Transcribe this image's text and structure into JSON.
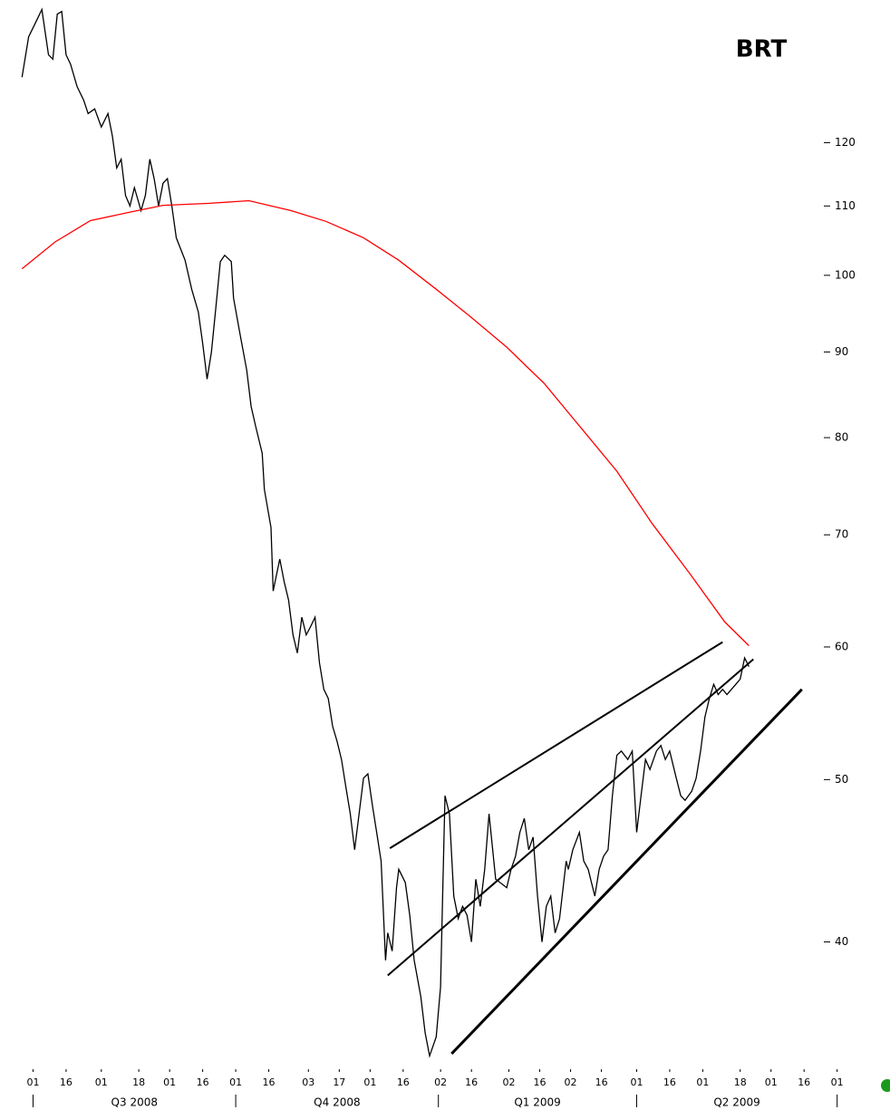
{
  "chart_data": {
    "type": "line",
    "title": "BRT",
    "log_scale": true,
    "ylim": [
      34,
      146
    ],
    "yticks": [
      40,
      50,
      60,
      70,
      80,
      90,
      100,
      110,
      120
    ],
    "xlim": [
      "2008-06-16",
      "2009-07-25"
    ],
    "xticks": [
      {
        "value": "2008-07-01",
        "label": "01"
      },
      {
        "value": "2008-07-16",
        "label": "16"
      },
      {
        "value": "2008-08-01",
        "label": "01"
      },
      {
        "value": "2008-08-18",
        "label": "18"
      },
      {
        "value": "2008-09-01",
        "label": "01"
      },
      {
        "value": "2008-09-16",
        "label": "16"
      },
      {
        "value": "2008-10-01",
        "label": "01"
      },
      {
        "value": "2008-10-16",
        "label": "16"
      },
      {
        "value": "2008-11-03",
        "label": "03"
      },
      {
        "value": "2008-11-17",
        "label": "17"
      },
      {
        "value": "2008-12-01",
        "label": "01"
      },
      {
        "value": "2008-12-16",
        "label": "16"
      },
      {
        "value": "2009-01-02",
        "label": "02"
      },
      {
        "value": "2009-01-16",
        "label": "16"
      },
      {
        "value": "2009-02-02",
        "label": "02"
      },
      {
        "value": "2009-02-16",
        "label": "16"
      },
      {
        "value": "2009-03-02",
        "label": "02"
      },
      {
        "value": "2009-03-16",
        "label": "16"
      },
      {
        "value": "2009-04-01",
        "label": "01"
      },
      {
        "value": "2009-04-16",
        "label": "16"
      },
      {
        "value": "2009-05-01",
        "label": "01"
      },
      {
        "value": "2009-05-18",
        "label": "18"
      },
      {
        "value": "2009-06-01",
        "label": "01"
      },
      {
        "value": "2009-06-16",
        "label": "16"
      },
      {
        "value": "2009-07-01",
        "label": "01"
      }
    ],
    "quarter_ticks": [
      "2008-07-01",
      "2008-10-01",
      "2009-01-01",
      "2009-04-01",
      "2009-07-01"
    ],
    "quarter_labels": [
      "Q3 2008",
      "Q4 2008",
      "Q1 2009",
      "Q2 2009"
    ],
    "series": [
      {
        "color": "#000000",
        "x": [
          "2008-06-26",
          "2008-06-29",
          "2008-07-02",
          "2008-07-05",
          "2008-07-08",
          "2008-07-10",
          "2008-07-12",
          "2008-07-14",
          "2008-07-16",
          "2008-07-18",
          "2008-07-21",
          "2008-07-24",
          "2008-07-26",
          "2008-07-29",
          "2008-08-01",
          "2008-08-04",
          "2008-08-06",
          "2008-08-08",
          "2008-08-10",
          "2008-08-12",
          "2008-08-14",
          "2008-08-16",
          "2008-08-19",
          "2008-08-21",
          "2008-08-23",
          "2008-08-25",
          "2008-08-27",
          "2008-08-29",
          "2008-08-31",
          "2008-09-02",
          "2008-09-04",
          "2008-09-08",
          "2008-09-11",
          "2008-09-14",
          "2008-09-16",
          "2008-09-18",
          "2008-09-20",
          "2008-09-22",
          "2008-09-24",
          "2008-09-26",
          "2008-09-29",
          "2008-09-30",
          "2008-10-03",
          "2008-10-06",
          "2008-10-08",
          "2008-10-10",
          "2008-10-13",
          "2008-10-14",
          "2008-10-17",
          "2008-10-18",
          "2008-10-21",
          "2008-10-23",
          "2008-10-25",
          "2008-10-27",
          "2008-10-29",
          "2008-10-31",
          "2008-11-02",
          "2008-11-04",
          "2008-11-06",
          "2008-11-08",
          "2008-11-10",
          "2008-11-12",
          "2008-11-14",
          "2008-11-16",
          "2008-11-18",
          "2008-11-20",
          "2008-11-22",
          "2008-11-24",
          "2008-11-26",
          "2008-11-28",
          "2008-11-30",
          "2008-12-02",
          "2008-12-04",
          "2008-12-06",
          "2008-12-08",
          "2008-12-09",
          "2008-12-11",
          "2008-12-13",
          "2008-12-14",
          "2008-12-17",
          "2008-12-19",
          "2008-12-21",
          "2008-12-24",
          "2008-12-26",
          "2008-12-28",
          "2008-12-31",
          "2009-01-02",
          "2009-01-03",
          "2009-01-04",
          "2009-01-06",
          "2009-01-08",
          "2009-01-10",
          "2009-01-12",
          "2009-01-14",
          "2009-01-16",
          "2009-01-18",
          "2009-01-20",
          "2009-01-22",
          "2009-01-24",
          "2009-01-27",
          "2009-01-29",
          "2009-02-01",
          "2009-02-03",
          "2009-02-05",
          "2009-02-07",
          "2009-02-09",
          "2009-02-11",
          "2009-02-13",
          "2009-02-15",
          "2009-02-17",
          "2009-02-19",
          "2009-02-21",
          "2009-02-23",
          "2009-02-25",
          "2009-02-28",
          "2009-03-01",
          "2009-03-03",
          "2009-03-06",
          "2009-03-08",
          "2009-03-10",
          "2009-03-13",
          "2009-03-15",
          "2009-03-17",
          "2009-03-19",
          "2009-03-21",
          "2009-03-23",
          "2009-03-25",
          "2009-03-28",
          "2009-03-30",
          "2009-04-01",
          "2009-04-03",
          "2009-04-05",
          "2009-04-07",
          "2009-04-10",
          "2009-04-12",
          "2009-04-14",
          "2009-04-16",
          "2009-04-19",
          "2009-04-21",
          "2009-04-23",
          "2009-04-26",
          "2009-04-28",
          "2009-04-30",
          "2009-05-02",
          "2009-05-04",
          "2009-05-06",
          "2009-05-08",
          "2009-05-10",
          "2009-05-12",
          "2009-05-14",
          "2009-05-16",
          "2009-05-18",
          "2009-05-20",
          "2009-05-22"
        ],
        "values": [
          131.3,
          138.8,
          141.4,
          144.1,
          135.4,
          134.6,
          143.2,
          143.7,
          135.4,
          133.7,
          129.6,
          127.2,
          124.9,
          125.7,
          122.6,
          124.9,
          121.1,
          115.9,
          117.3,
          111.6,
          110,
          112.8,
          109.3,
          111.6,
          117.3,
          114.2,
          110,
          113.5,
          114.2,
          110,
          105.3,
          102.1,
          98.1,
          95.1,
          91.1,
          86.7,
          90,
          95.7,
          101.9,
          102.8,
          101.9,
          96.9,
          92.2,
          87.8,
          83.5,
          81.3,
          78.3,
          74.5,
          70.7,
          64.8,
          67.7,
          65.6,
          64.0,
          61.0,
          59.5,
          62.5,
          61.0,
          61.7,
          62.5,
          58.7,
          56.6,
          55.9,
          53.8,
          52.7,
          51.4,
          49.5,
          47.7,
          45.4,
          47.7,
          50.1,
          50.4,
          48.3,
          46.5,
          44.7,
          39.0,
          40.5,
          39.5,
          43.1,
          44.2,
          43.4,
          41.5,
          39.0,
          37.1,
          35.3,
          34.2,
          35.1,
          37.6,
          43.1,
          48.9,
          47.7,
          42.6,
          41.3,
          42.0,
          41.5,
          40.0,
          43.6,
          42.0,
          44.2,
          47.7,
          43.6,
          43.4,
          43.1,
          44.2,
          45.0,
          46.5,
          47.4,
          45.4,
          46.2,
          42.6,
          40.0,
          42.0,
          42.6,
          40.5,
          41.3,
          44.7,
          44.2,
          45.4,
          46.5,
          44.7,
          44.2,
          42.6,
          44.2,
          45.0,
          45.4,
          48.9,
          51.7,
          52.0,
          51.4,
          52.0,
          46.5,
          48.9,
          51.4,
          50.7,
          52.0,
          52.4,
          51.4,
          52.0,
          50.1,
          48.9,
          48.6,
          49.2,
          50.1,
          52.0,
          54.5,
          55.9,
          57.0,
          56.2,
          56.6,
          56.2,
          56.6,
          57.0,
          57.4,
          59.1,
          58.4
        ]
      },
      {
        "color": "#ff0000",
        "x": [
          "2008-06-26",
          "2008-07-11",
          "2008-07-27",
          "2008-08-13",
          "2008-08-29",
          "2008-09-19",
          "2008-10-07",
          "2008-10-26",
          "2008-11-11",
          "2008-11-28",
          "2008-12-14",
          "2008-12-31",
          "2009-01-15",
          "2009-02-01",
          "2009-02-18",
          "2009-03-06",
          "2009-03-23",
          "2009-04-08",
          "2009-04-25",
          "2009-05-11",
          "2009-05-22"
        ],
        "values": [
          100.9,
          104.7,
          107.8,
          109.0,
          110.1,
          110.4,
          110.8,
          109.3,
          107.7,
          105.3,
          102.1,
          98.1,
          94.6,
          90.6,
          86.2,
          81.3,
          76.4,
          71.1,
          66.4,
          62.1,
          60.1
        ]
      }
    ],
    "trendline_color": "#000000",
    "trendlines": [
      {
        "x": [
          "2008-12-10",
          "2009-05-10"
        ],
        "values": [
          45.5,
          60.4
        ]
      },
      {
        "x": [
          "2008-12-09",
          "2009-05-24"
        ],
        "values": [
          38.2,
          59.0
        ]
      },
      {
        "x": [
          "2009-01-07",
          "2009-06-15"
        ],
        "values": [
          34.3,
          56.6
        ]
      }
    ]
  }
}
